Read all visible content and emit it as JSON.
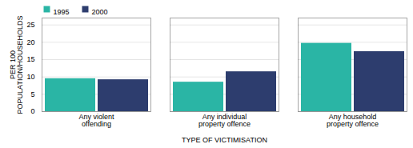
{
  "chart_data": {
    "type": "bar",
    "xlabel": "TYPE OF VICTIMISATION",
    "ylabel": "PER 100\nPOPULATION/HOUSEHOLDS",
    "categories": [
      "Any violent\noffending",
      "Any individual\nproperty offence",
      "Any household\nproperty offence"
    ],
    "series": [
      {
        "name": "1995",
        "color": "#2ab5a5",
        "values": [
          9.5,
          8.5,
          19.7
        ]
      },
      {
        "name": "2000",
        "color": "#2d3d6e",
        "values": [
          9.2,
          11.5,
          17.3
        ]
      }
    ],
    "ylim": [
      0,
      27
    ],
    "yticks": [
      0,
      5,
      10,
      15,
      20,
      25
    ],
    "grid": true,
    "legend": "upper left"
  }
}
